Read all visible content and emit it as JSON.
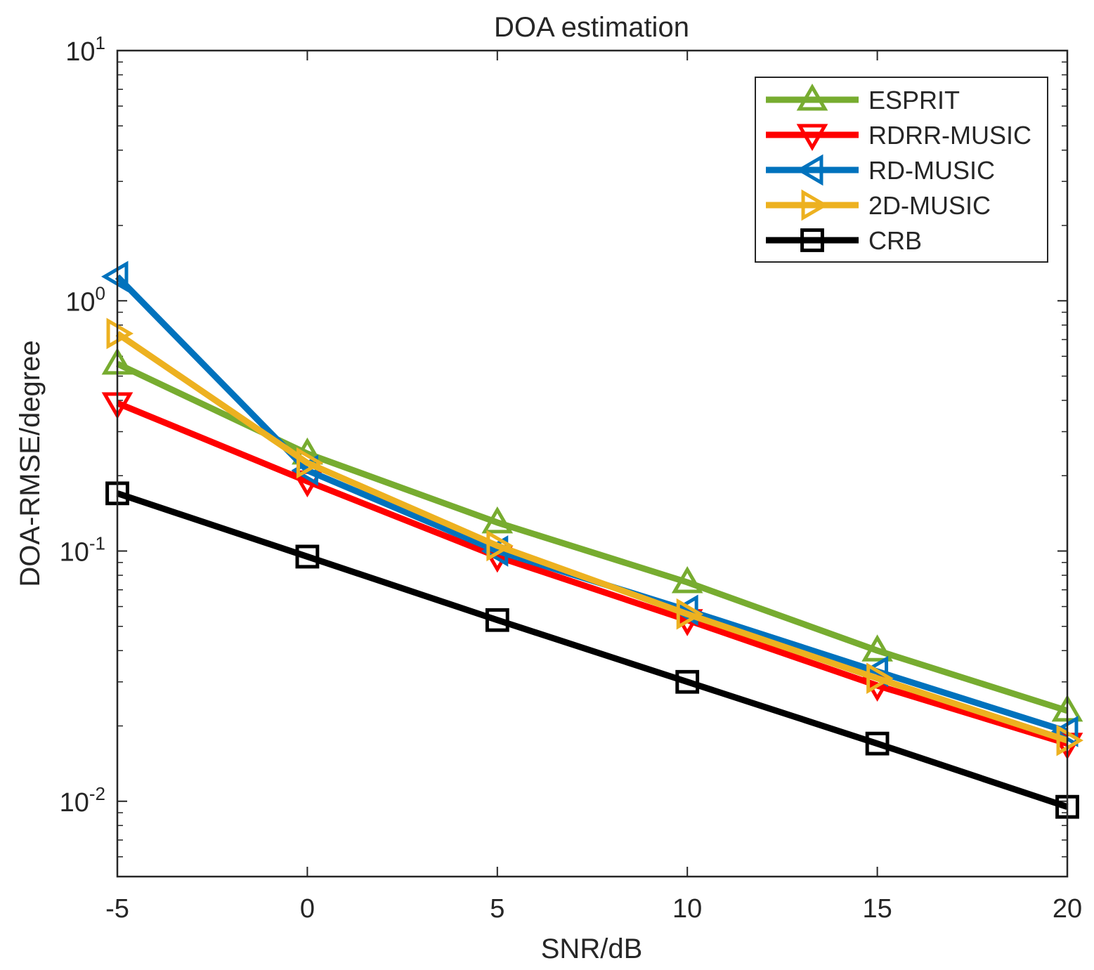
{
  "chart_data": {
    "type": "line",
    "title": "DOA estimation",
    "xlabel": "SNR/dB",
    "ylabel": "DOA-RMSE/degree",
    "yscale": "log",
    "x": [
      -5,
      0,
      5,
      10,
      15,
      20
    ],
    "xlim": [
      -5,
      20
    ],
    "ylim": [
      0.005,
      10
    ],
    "xticks": [
      "-5",
      "0",
      "5",
      "10",
      "15",
      "20"
    ],
    "yticks": [
      {
        "value": 0.01,
        "base": "10",
        "exp": "-2"
      },
      {
        "value": 0.1,
        "base": "10",
        "exp": "-1"
      },
      {
        "value": 1,
        "base": "10",
        "exp": "0"
      },
      {
        "value": 10,
        "base": "10",
        "exp": "1"
      }
    ],
    "legend_position": "top-right",
    "series": [
      {
        "name": "ESPRIT",
        "color": "#77ac30",
        "marker": "triangle-up",
        "values": [
          0.56,
          0.245,
          0.13,
          0.075,
          0.04,
          0.023
        ]
      },
      {
        "name": "RDRR-MUSIC",
        "color": "#ff0000",
        "marker": "triangle-down",
        "values": [
          0.39,
          0.19,
          0.095,
          0.053,
          0.029,
          0.017
        ]
      },
      {
        "name": "RD-MUSIC",
        "color": "#0072bd",
        "marker": "triangle-left",
        "values": [
          1.25,
          0.21,
          0.1,
          0.058,
          0.033,
          0.019
        ]
      },
      {
        "name": "2D-MUSIC",
        "color": "#edb120",
        "marker": "triangle-right",
        "values": [
          0.74,
          0.225,
          0.105,
          0.056,
          0.031,
          0.0175
        ]
      },
      {
        "name": "CRB",
        "color": "#000000",
        "marker": "square",
        "values": [
          0.17,
          0.095,
          0.053,
          0.03,
          0.017,
          0.0095
        ]
      }
    ]
  }
}
